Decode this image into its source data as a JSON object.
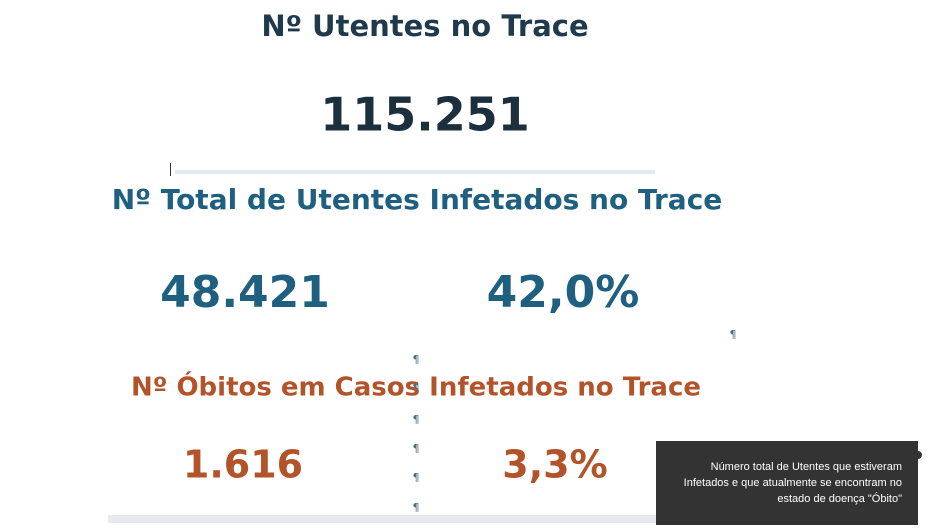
{
  "kpi_utentes": {
    "title": "Nº Utentes no Trace",
    "value": "115.251"
  },
  "kpi_infetados": {
    "title": "Nº Total de Utentes Infetados no Trace",
    "value": "48.421",
    "percent": "42,0%"
  },
  "kpi_obitos": {
    "title": "Nº Óbitos em Casos Infetados no Trace",
    "value": "1.616",
    "percent": "3,3%"
  },
  "tooltip": {
    "lines": [
      "Número total de Utentes que estiveram",
      "Infetados e que atualmente se encontram no",
      "estado de doença \"Óbito\""
    ]
  },
  "format_mark": "¶"
}
